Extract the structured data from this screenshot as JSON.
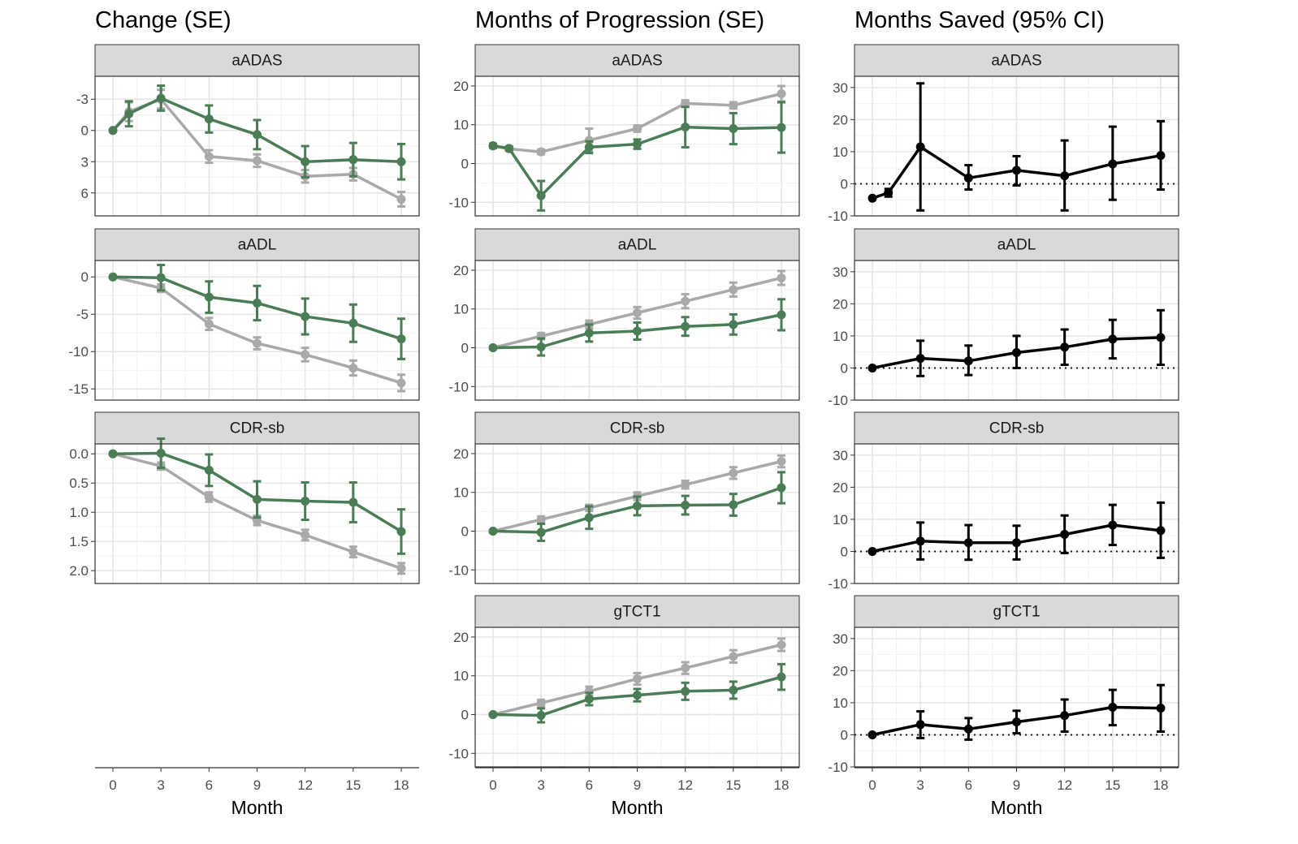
{
  "chart_data": {
    "type": "line",
    "xlabel": "Month",
    "x": [
      0,
      3,
      6,
      9,
      12,
      15,
      18
    ],
    "x_ticks": [
      "0",
      "3",
      "6",
      "9",
      "12",
      "15",
      "18"
    ],
    "colors": {
      "green": "#4a7d56",
      "grey": "#a9a9a9",
      "black": "#000000"
    },
    "grid": true,
    "columns": [
      {
        "title": "Change (SE)",
        "panels": [
          {
            "strip": "aADAS",
            "reversed": true,
            "ylim": [
              8.2,
              -5.2
            ],
            "yticks": [
              6,
              3,
              0,
              -3
            ],
            "ytick_labels": [
              "6",
              "3",
              "0",
              "-3"
            ],
            "series": [
              {
                "color": "grey",
                "x": [
                  0,
                  1,
                  3,
                  6,
                  9,
                  12,
                  15,
                  18
                ],
                "y": [
                  0,
                  -1.8,
                  -3.0,
                  2.5,
                  2.9,
                  4.4,
                  4.2,
                  6.6
                ],
                "err": [
                  0.1,
                  0.9,
                  0.9,
                  0.6,
                  0.6,
                  0.6,
                  0.6,
                  0.7
                ]
              },
              {
                "color": "green",
                "x": [
                  0,
                  1,
                  3,
                  6,
                  9,
                  12,
                  15,
                  18
                ],
                "y": [
                  0,
                  -1.6,
                  -3.1,
                  -1.1,
                  0.4,
                  3.0,
                  2.8,
                  3.0
                ],
                "err": [
                  0.1,
                  1.2,
                  1.2,
                  1.3,
                  1.4,
                  1.5,
                  1.6,
                  1.7
                ]
              }
            ]
          },
          {
            "strip": "aADL",
            "reversed": false,
            "ylim": [
              -16.5,
              2.2
            ],
            "yticks": [
              0,
              -5,
              -10,
              -15
            ],
            "ytick_labels": [
              "0",
              "-5",
              "-10",
              "-15"
            ],
            "series": [
              {
                "color": "grey",
                "x": [
                  0,
                  3,
                  6,
                  9,
                  12,
                  15,
                  18
                ],
                "y": [
                  0,
                  -1.5,
                  -6.3,
                  -8.9,
                  -10.4,
                  -12.2,
                  -14.2
                ],
                "err": [
                  0.1,
                  0.5,
                  0.8,
                  0.8,
                  0.9,
                  1.0,
                  1.1
                ]
              },
              {
                "color": "green",
                "x": [
                  0,
                  3,
                  6,
                  9,
                  12,
                  15,
                  18
                ],
                "y": [
                  0,
                  -0.1,
                  -2.7,
                  -3.5,
                  -5.3,
                  -6.2,
                  -8.3
                ],
                "err": [
                  0.1,
                  1.7,
                  2.1,
                  2.3,
                  2.4,
                  2.5,
                  2.7
                ]
              }
            ]
          },
          {
            "strip": "CDR-sb",
            "reversed": true,
            "ylim": [
              2.22,
              -0.17
            ],
            "yticks": [
              0.0,
              0.5,
              1.0,
              1.5,
              2.0
            ],
            "ytick_labels": [
              "0.0",
              "0.5",
              "1.0",
              "1.5",
              "2.0"
            ],
            "series": [
              {
                "color": "grey",
                "x": [
                  0,
                  3,
                  6,
                  9,
                  12,
                  15,
                  18
                ],
                "y": [
                  0,
                  0.21,
                  0.74,
                  1.14,
                  1.39,
                  1.68,
                  1.96
                ],
                "err": [
                  0.02,
                  0.06,
                  0.08,
                  0.08,
                  0.09,
                  0.09,
                  0.09
                ]
              },
              {
                "color": "green",
                "x": [
                  0,
                  3,
                  6,
                  9,
                  12,
                  15,
                  18
                ],
                "y": [
                  0,
                  -0.01,
                  0.28,
                  0.78,
                  0.81,
                  0.83,
                  1.33
                ],
                "err": [
                  0.02,
                  0.25,
                  0.27,
                  0.31,
                  0.32,
                  0.34,
                  0.38
                ]
              }
            ]
          }
        ]
      },
      {
        "title": "Months of Progression (SE)",
        "panels": [
          {
            "strip": "aADAS",
            "reversed": false,
            "ylim": [
              -13.5,
              22.5
            ],
            "yticks": [
              -10,
              0,
              10,
              20
            ],
            "ytick_labels": [
              "-10",
              "0",
              "10",
              "20"
            ],
            "series": [
              {
                "color": "grey",
                "x": [
                  0,
                  1,
                  3,
                  6,
                  9,
                  12,
                  15,
                  18
                ],
                "y": [
                  4.5,
                  3.8,
                  3.0,
                  6.0,
                  9.0,
                  15.5,
                  15.0,
                  18.0
                ],
                "err": [
                  0.5,
                  0.5,
                  0.6,
                  3.0,
                  0.8,
                  0.8,
                  0.8,
                  2.0
                ]
              },
              {
                "color": "green",
                "x": [
                  0,
                  1,
                  3,
                  6,
                  9,
                  12,
                  15,
                  18
                ],
                "y": [
                  4.6,
                  3.9,
                  -8.3,
                  4.2,
                  5.0,
                  9.4,
                  9.0,
                  9.3
                ],
                "err": [
                  0.5,
                  0.5,
                  3.8,
                  1.5,
                  1.2,
                  5.2,
                  4.0,
                  6.5
                ]
              }
            ]
          },
          {
            "strip": "aADL",
            "reversed": false,
            "ylim": [
              -13.5,
              22.5
            ],
            "yticks": [
              -10,
              0,
              10,
              20
            ],
            "ytick_labels": [
              "-10",
              "0",
              "10",
              "20"
            ],
            "series": [
              {
                "color": "grey",
                "x": [
                  0,
                  3,
                  6,
                  9,
                  12,
                  15,
                  18
                ],
                "y": [
                  0,
                  3.0,
                  6.0,
                  9.0,
                  12.0,
                  15.0,
                  18.0
                ],
                "err": [
                  0.3,
                  0.8,
                  1.0,
                  1.5,
                  1.8,
                  1.8,
                  1.8
                ]
              },
              {
                "color": "green",
                "x": [
                  0,
                  3,
                  6,
                  9,
                  12,
                  15,
                  18
                ],
                "y": [
                  0,
                  0.2,
                  3.8,
                  4.3,
                  5.5,
                  6.0,
                  8.5
                ],
                "err": [
                  0.3,
                  2.2,
                  2.2,
                  2.2,
                  2.4,
                  2.6,
                  4.0
                ]
              }
            ]
          },
          {
            "strip": "CDR-sb",
            "reversed": false,
            "ylim": [
              -13.5,
              22.5
            ],
            "yticks": [
              -10,
              0,
              10,
              20
            ],
            "ytick_labels": [
              "-10",
              "0",
              "10",
              "20"
            ],
            "series": [
              {
                "color": "grey",
                "x": [
                  0,
                  3,
                  6,
                  9,
                  12,
                  15,
                  18
                ],
                "y": [
                  0,
                  3.0,
                  6.0,
                  9.0,
                  12.0,
                  15.0,
                  18.0
                ],
                "err": [
                  0.3,
                  0.8,
                  0.8,
                  1.0,
                  1.0,
                  1.5,
                  1.5
                ]
              },
              {
                "color": "green",
                "x": [
                  0,
                  3,
                  6,
                  9,
                  12,
                  15,
                  18
                ],
                "y": [
                  0,
                  -0.3,
                  3.5,
                  6.5,
                  6.7,
                  6.8,
                  11.2
                ],
                "err": [
                  0.3,
                  2.2,
                  2.9,
                  2.4,
                  2.4,
                  2.8,
                  4.0
                ]
              }
            ]
          },
          {
            "strip": "gTCT1",
            "reversed": false,
            "ylim": [
              -13.5,
              22.5
            ],
            "yticks": [
              -10,
              0,
              10,
              20
            ],
            "ytick_labels": [
              "-10",
              "0",
              "10",
              "20"
            ],
            "series": [
              {
                "color": "grey",
                "x": [
                  0,
                  3,
                  6,
                  9,
                  12,
                  15,
                  18
                ],
                "y": [
                  0,
                  3.0,
                  6.0,
                  9.2,
                  12.0,
                  15.0,
                  18.0
                ],
                "err": [
                  0.3,
                  0.8,
                  1.2,
                  1.5,
                  1.5,
                  1.6,
                  1.6
                ]
              },
              {
                "color": "green",
                "x": [
                  0,
                  3,
                  6,
                  9,
                  12,
                  15,
                  18
                ],
                "y": [
                  0,
                  -0.2,
                  4.0,
                  5.0,
                  6.0,
                  6.3,
                  9.7
                ],
                "err": [
                  0.3,
                  1.8,
                  1.6,
                  1.6,
                  2.2,
                  2.2,
                  3.3
                ]
              }
            ]
          }
        ]
      },
      {
        "title": "Months Saved (95% CI)",
        "panels": [
          {
            "strip": "aADAS",
            "reversed": false,
            "ylim": [
              -10,
              33.5
            ],
            "refline": 0,
            "yticks": [
              -10,
              0,
              10,
              20,
              30
            ],
            "ytick_labels": [
              "-10",
              "0",
              "10",
              "20",
              "30"
            ],
            "series": [
              {
                "color": "black",
                "x": [
                  0,
                  1,
                  3,
                  6,
                  9,
                  12,
                  15,
                  18
                ],
                "y": [
                  -4.5,
                  -2.8,
                  11.5,
                  1.8,
                  4.2,
                  2.5,
                  6.2,
                  8.8
                ],
                "lo": [
                  -4.5,
                  -4.0,
                  -8.3,
                  -1.8,
                  -0.5,
                  -8.3,
                  -5.0,
                  -1.8
                ],
                "hi": [
                  -4.5,
                  -1.6,
                  31.3,
                  5.8,
                  8.6,
                  13.5,
                  17.8,
                  19.5
                ]
              }
            ]
          },
          {
            "strip": "aADL",
            "reversed": false,
            "ylim": [
              -10,
              33.5
            ],
            "refline": 0,
            "yticks": [
              -10,
              0,
              10,
              20,
              30
            ],
            "ytick_labels": [
              "-10",
              "0",
              "10",
              "20",
              "30"
            ],
            "series": [
              {
                "color": "black",
                "x": [
                  0,
                  3,
                  6,
                  9,
                  12,
                  15,
                  18
                ],
                "y": [
                  0,
                  3.0,
                  2.2,
                  4.8,
                  6.5,
                  9.0,
                  9.5
                ],
                "lo": [
                  0,
                  -2.5,
                  -2.2,
                  0,
                  1.0,
                  3.0,
                  1.0
                ],
                "hi": [
                  0,
                  8.5,
                  7.0,
                  10.0,
                  12.0,
                  15.0,
                  18.0
                ]
              }
            ]
          },
          {
            "strip": "CDR-sb",
            "reversed": false,
            "ylim": [
              -10,
              33.5
            ],
            "refline": 0,
            "yticks": [
              -10,
              0,
              10,
              20,
              30
            ],
            "ytick_labels": [
              "-10",
              "0",
              "10",
              "20",
              "30"
            ],
            "series": [
              {
                "color": "black",
                "x": [
                  0,
                  3,
                  6,
                  9,
                  12,
                  15,
                  18
                ],
                "y": [
                  0,
                  3.2,
                  2.7,
                  2.7,
                  5.3,
                  8.2,
                  6.5
                ],
                "lo": [
                  0,
                  -2.5,
                  -2.6,
                  -2.5,
                  -0.5,
                  2.0,
                  -2.0
                ],
                "hi": [
                  0,
                  9.0,
                  8.2,
                  8.0,
                  11.2,
                  14.5,
                  15.2
                ]
              }
            ]
          },
          {
            "strip": "gTCT1",
            "reversed": false,
            "ylim": [
              -10,
              33.5
            ],
            "refline": 0,
            "yticks": [
              -10,
              0,
              10,
              20,
              30
            ],
            "ytick_labels": [
              "-10",
              "0",
              "10",
              "20",
              "30"
            ],
            "series": [
              {
                "color": "black",
                "x": [
                  0,
                  3,
                  6,
                  9,
                  12,
                  15,
                  18
                ],
                "y": [
                  0,
                  3.2,
                  1.8,
                  4.0,
                  6.0,
                  8.6,
                  8.3
                ],
                "lo": [
                  0,
                  -1.0,
                  -1.5,
                  0.5,
                  1.0,
                  3.0,
                  1.0
                ],
                "hi": [
                  0,
                  7.3,
                  5.2,
                  7.5,
                  11.0,
                  14.0,
                  15.5
                ]
              }
            ]
          }
        ]
      }
    ]
  }
}
